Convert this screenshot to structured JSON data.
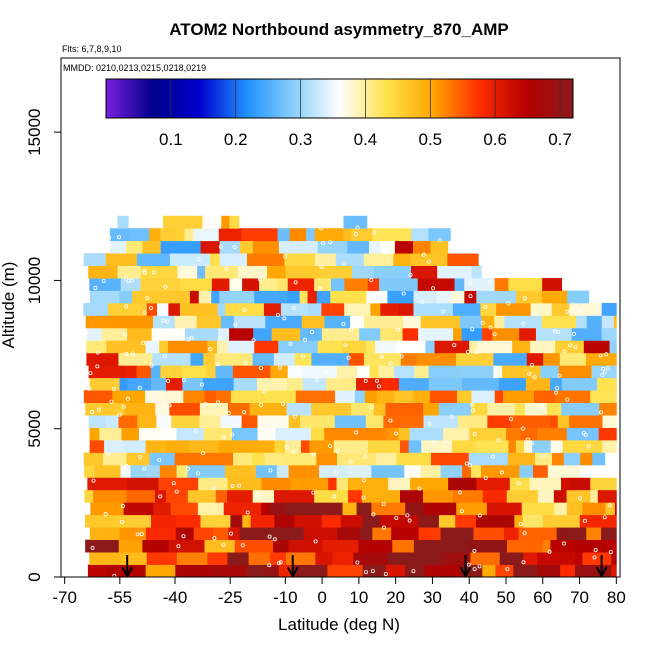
{
  "chart_data": {
    "type": "heatmap",
    "title": "ATOM2 Northbound asymmetry_870_AMP",
    "flights_text": "Flts: 6,7,8,9,10",
    "dates_text": "MMDD: 0210,0213,0215,0218,0219",
    "xlabel": "Latitude (deg N)",
    "ylabel": "Altitude (m)",
    "xlim": [
      -71,
      81
    ],
    "ylim": [
      0,
      17500
    ],
    "x_ticks": [
      -70,
      -55,
      -40,
      -25,
      -10,
      0,
      10,
      20,
      30,
      40,
      50,
      60,
      70,
      80
    ],
    "x_tick_labels": [
      "-70",
      "-55",
      "-40",
      "-25",
      "-10",
      "0",
      "10",
      "20",
      "30",
      "40",
      "50",
      "60",
      "70",
      "80"
    ],
    "y_ticks": [
      0,
      5000,
      10000,
      15000
    ],
    "y_tick_labels": [
      "0",
      "5000",
      "10000",
      "15000"
    ],
    "colorbar": {
      "range": [
        0.0,
        0.72
      ],
      "ticks": [
        0.1,
        0.2,
        0.3,
        0.4,
        0.5,
        0.6,
        0.7
      ],
      "tick_labels": [
        "0.1",
        "0.2",
        "0.3",
        "0.4",
        "0.5",
        "0.6",
        "0.7"
      ],
      "colors": [
        "#7a1fdc",
        "#00008b",
        "#0000cd",
        "#1e90ff",
        "#87cefa",
        "#ffffff",
        "#ffe24d",
        "#ffa500",
        "#ff2d00",
        "#b50000",
        "#8b1a1a"
      ]
    },
    "profile_markers_lat": [
      -53,
      -8,
      39,
      76
    ],
    "data_extent": {
      "lat_min": -65,
      "lat_max": 80,
      "alt_max": 12500
    },
    "description": "Altitude-latitude curtain of asymmetry_870_AMP; values roughly 0.3-0.45 aloft with high values (0.55-0.7) near the surface"
  }
}
